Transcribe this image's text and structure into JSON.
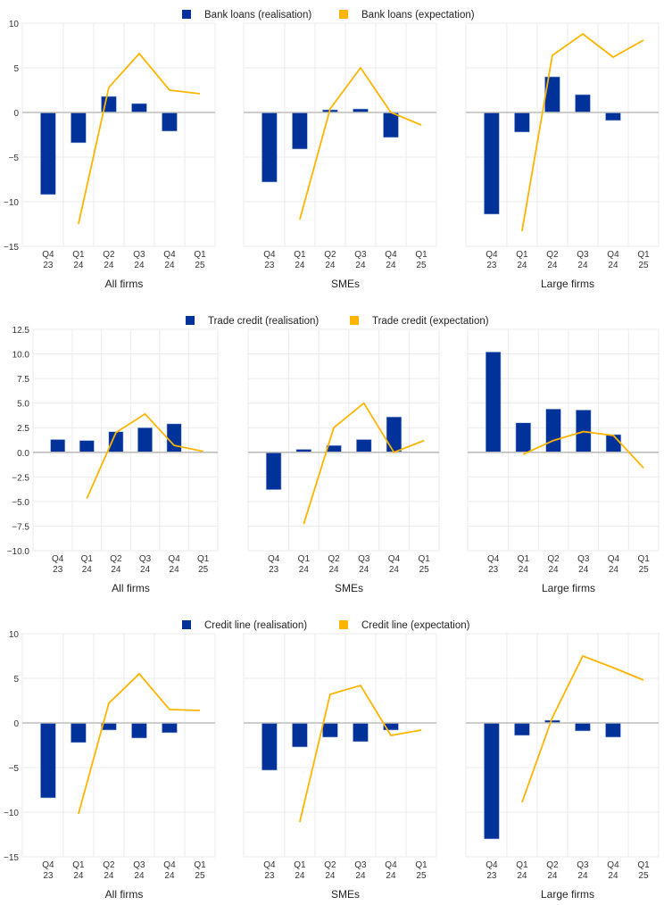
{
  "colors": {
    "realisation": "#003299",
    "expectation": "#ffb400",
    "grid": "#ebebeb",
    "zero": "#bdbdbd"
  },
  "chart_data": [
    {
      "type": "bar+line",
      "instrument": "Bank loans",
      "legend": [
        "Bank loans (realisation)",
        "Bank loans (expectation)"
      ],
      "legend_position": "top-center",
      "ylim": [
        -15,
        10
      ],
      "yticks": [
        "10",
        "5",
        "0",
        "−5",
        "−10",
        "−15"
      ],
      "ytick_values": [
        10,
        5,
        0,
        -5,
        -10,
        -15
      ],
      "categories": [
        [
          "Q4",
          "23"
        ],
        [
          "Q1",
          "24"
        ],
        [
          "Q2",
          "24"
        ],
        [
          "Q3",
          "24"
        ],
        [
          "Q4",
          "24"
        ],
        [
          "Q1",
          "25"
        ]
      ],
      "panels": [
        {
          "title": "All firms",
          "realisation": [
            -9.2,
            -3.4,
            1.8,
            1.0,
            -2.1,
            null
          ],
          "expectation": [
            null,
            -12.5,
            2.8,
            6.6,
            2.5,
            2.1
          ]
        },
        {
          "title": "SMEs",
          "realisation": [
            -7.8,
            -4.1,
            0.3,
            0.4,
            -2.8,
            null
          ],
          "expectation": [
            null,
            -12.0,
            0.4,
            5.0,
            0.0,
            -1.4
          ]
        },
        {
          "title": "Large firms",
          "realisation": [
            -11.4,
            -2.2,
            4.0,
            2.0,
            -0.9,
            null
          ],
          "expectation": [
            null,
            -13.3,
            6.4,
            8.8,
            6.2,
            8.1
          ]
        }
      ]
    },
    {
      "type": "bar+line",
      "instrument": "Trade credit",
      "legend": [
        "Trade credit (realisation)",
        "Trade credit (expectation)"
      ],
      "legend_position": "top-center",
      "ylim": [
        -10,
        12.5
      ],
      "yticks": [
        "12.5",
        "10.0",
        "7.5",
        "5.0",
        "2.5",
        "0.0",
        "−2.5",
        "−5.0",
        "−7.5",
        "−10.0"
      ],
      "ytick_values": [
        12.5,
        10,
        7.5,
        5,
        2.5,
        0,
        -2.5,
        -5,
        -7.5,
        -10
      ],
      "categories": [
        [
          "Q4",
          "23"
        ],
        [
          "Q1",
          "24"
        ],
        [
          "Q2",
          "24"
        ],
        [
          "Q3",
          "24"
        ],
        [
          "Q4",
          "24"
        ],
        [
          "Q1",
          "25"
        ]
      ],
      "panels": [
        {
          "title": "All firms",
          "realisation": [
            1.3,
            1.2,
            2.1,
            2.5,
            2.9,
            null
          ],
          "expectation": [
            null,
            -4.7,
            2.0,
            3.9,
            0.7,
            0.1
          ]
        },
        {
          "title": "SMEs",
          "realisation": [
            -3.8,
            0.3,
            0.7,
            1.3,
            3.6,
            null
          ],
          "expectation": [
            null,
            -7.3,
            2.5,
            5.0,
            0.0,
            1.2
          ]
        },
        {
          "title": "Large firms",
          "realisation": [
            10.2,
            3.0,
            4.4,
            4.3,
            1.8,
            null
          ],
          "expectation": [
            null,
            -0.2,
            1.2,
            2.1,
            1.7,
            -1.6
          ]
        }
      ]
    },
    {
      "type": "bar+line",
      "instrument": "Credit line",
      "legend": [
        "Credit line (realisation)",
        "Credit line (expectation)"
      ],
      "legend_position": "top-center",
      "ylim": [
        -15,
        10
      ],
      "yticks": [
        "10",
        "5",
        "0",
        "−5",
        "−10",
        "−15"
      ],
      "ytick_values": [
        10,
        5,
        0,
        -5,
        -10,
        -15
      ],
      "categories": [
        [
          "Q4",
          "23"
        ],
        [
          "Q1",
          "24"
        ],
        [
          "Q2",
          "24"
        ],
        [
          "Q3",
          "24"
        ],
        [
          "Q4",
          "24"
        ],
        [
          "Q1",
          "25"
        ]
      ],
      "panels": [
        {
          "title": "All firms",
          "realisation": [
            -8.4,
            -2.2,
            -0.8,
            -1.7,
            -1.1,
            null
          ],
          "expectation": [
            null,
            -10.2,
            2.2,
            5.5,
            1.5,
            1.4
          ]
        },
        {
          "title": "SMEs",
          "realisation": [
            -5.3,
            -2.7,
            -1.6,
            -2.1,
            -0.8,
            null
          ],
          "expectation": [
            null,
            -11.1,
            3.2,
            4.2,
            -1.4,
            -0.8
          ]
        },
        {
          "title": "Large firms",
          "realisation": [
            -13.0,
            -1.4,
            0.3,
            -0.9,
            -1.6,
            null
          ],
          "expectation": [
            null,
            -8.9,
            0.6,
            7.5,
            6.2,
            4.8
          ]
        }
      ]
    }
  ]
}
